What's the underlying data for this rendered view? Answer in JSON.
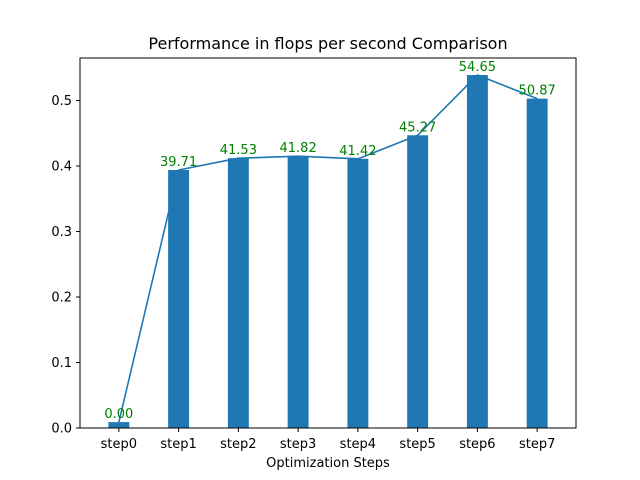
{
  "chart_data": {
    "type": "bar",
    "title": "Performance in flops per second Comparison",
    "xlabel": "Optimization Steps",
    "ylabel": "",
    "categories": [
      "step0",
      "step1",
      "step2",
      "step3",
      "step4",
      "step5",
      "step6",
      "step7"
    ],
    "values": [
      0.009,
      0.394,
      0.412,
      0.415,
      0.411,
      0.447,
      0.539,
      0.503
    ],
    "data_labels": [
      "0.00",
      "39.71",
      "41.53",
      "41.82",
      "41.42",
      "45.27",
      "54.65",
      "50.87"
    ],
    "overlay_line": true,
    "ylim": [
      0,
      0.565
    ],
    "yticks": [
      0.0,
      0.1,
      0.2,
      0.3,
      0.4,
      0.5
    ],
    "ytick_labels": [
      "0.0",
      "0.1",
      "0.2",
      "0.3",
      "0.4",
      "0.5"
    ],
    "grid": false,
    "colors": {
      "bar": "#1f77b4",
      "line": "#1f77b4",
      "data_label": "#008000"
    }
  }
}
